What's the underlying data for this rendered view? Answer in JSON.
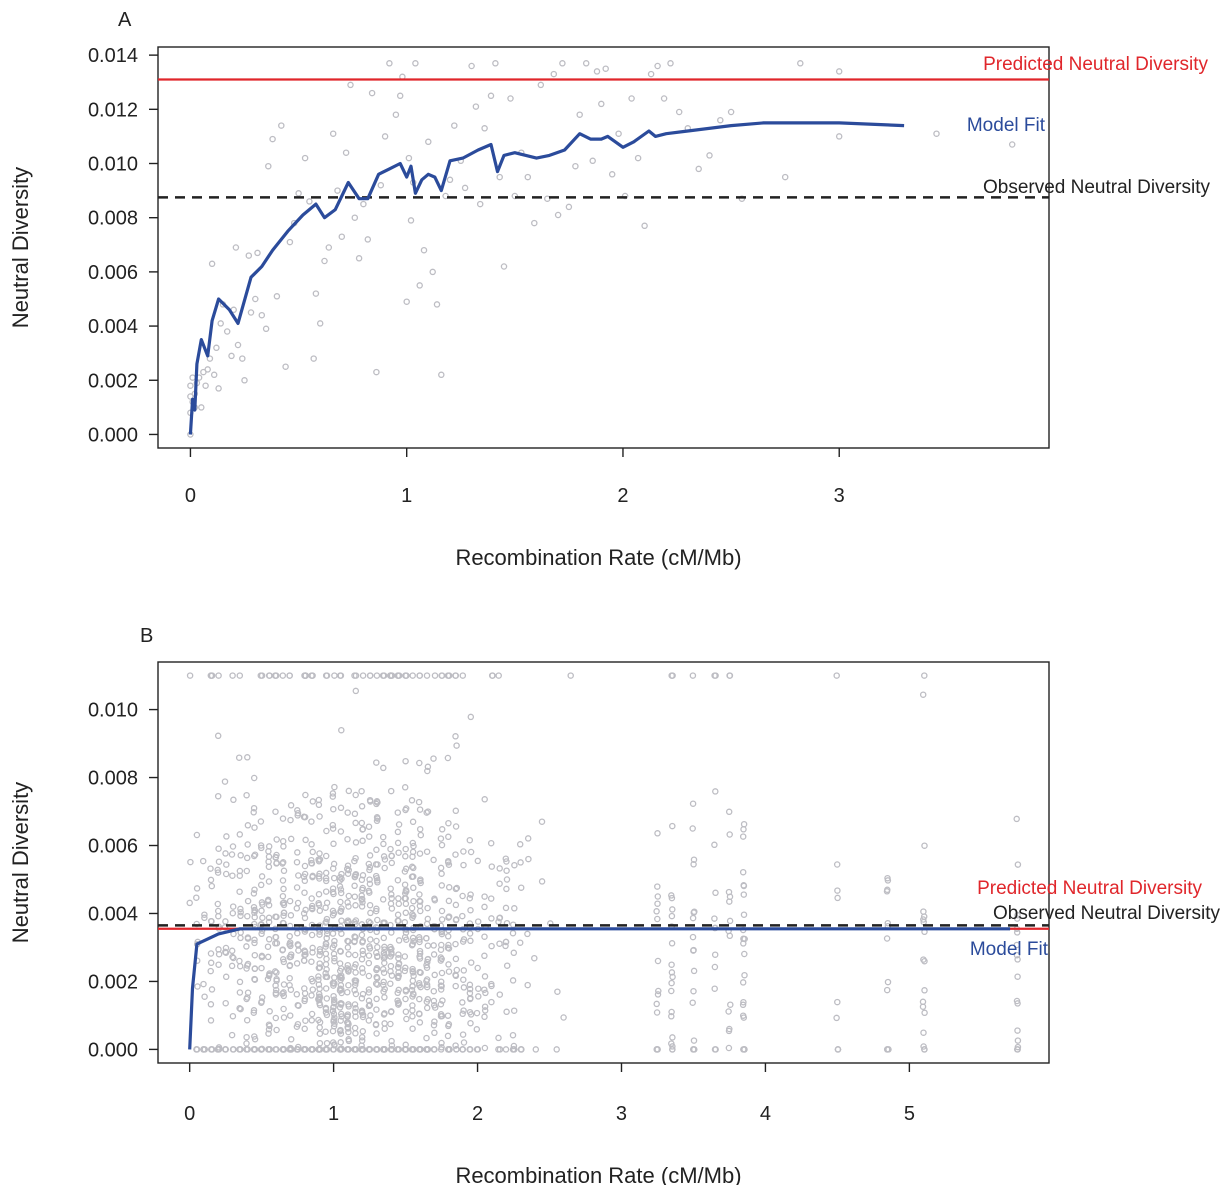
{
  "chart_data": [
    {
      "type": "scatter",
      "panel_label": "A",
      "xlabel": "Recombination Rate (cM/Mb)",
      "ylabel": "Neutral Diversity",
      "xlim": [
        -0.15,
        3.97
      ],
      "ylim": [
        -0.0005,
        0.0143
      ],
      "xticks": [
        "0",
        "1",
        "2",
        "3"
      ],
      "xtick_values": [
        0,
        1,
        2,
        3
      ],
      "yticks": [
        "0.000",
        "0.002",
        "0.004",
        "0.006",
        "0.008",
        "0.010",
        "0.012",
        "0.014"
      ],
      "ytick_values": [
        0,
        0.002,
        0.004,
        0.006,
        0.008,
        0.01,
        0.012,
        0.014
      ],
      "colors": {
        "points": "#bdbdc3",
        "predicted": "#e0262b",
        "model": "#2b4b9b",
        "observed": "#222222"
      },
      "points": [
        [
          0.0,
          0.0
        ],
        [
          0.0,
          0.0008
        ],
        [
          0.0,
          0.0014
        ],
        [
          0.0,
          0.0018
        ],
        [
          0.01,
          0.0012
        ],
        [
          0.01,
          0.0021
        ],
        [
          0.02,
          0.0015
        ],
        [
          0.02,
          0.001
        ],
        [
          0.03,
          0.0019
        ],
        [
          0.04,
          0.0021
        ],
        [
          0.05,
          0.001
        ],
        [
          0.06,
          0.0023
        ],
        [
          0.07,
          0.0018
        ],
        [
          0.08,
          0.0024
        ],
        [
          0.09,
          0.0028
        ],
        [
          0.1,
          0.0063
        ],
        [
          0.11,
          0.0022
        ],
        [
          0.12,
          0.0032
        ],
        [
          0.13,
          0.0017
        ],
        [
          0.14,
          0.0041
        ],
        [
          0.15,
          0.0048
        ],
        [
          0.17,
          0.0038
        ],
        [
          0.19,
          0.0029
        ],
        [
          0.2,
          0.0046
        ],
        [
          0.21,
          0.0069
        ],
        [
          0.22,
          0.0033
        ],
        [
          0.24,
          0.0028
        ],
        [
          0.25,
          0.002
        ],
        [
          0.27,
          0.0066
        ],
        [
          0.28,
          0.0045
        ],
        [
          0.3,
          0.005
        ],
        [
          0.31,
          0.0067
        ],
        [
          0.33,
          0.0044
        ],
        [
          0.35,
          0.0039
        ],
        [
          0.36,
          0.0099
        ],
        [
          0.38,
          0.0109
        ],
        [
          0.4,
          0.0051
        ],
        [
          0.42,
          0.0114
        ],
        [
          0.44,
          0.0025
        ],
        [
          0.46,
          0.0071
        ],
        [
          0.48,
          0.0078
        ],
        [
          0.5,
          0.0089
        ],
        [
          0.53,
          0.0102
        ],
        [
          0.55,
          0.0086
        ],
        [
          0.57,
          0.0028
        ],
        [
          0.58,
          0.0052
        ],
        [
          0.6,
          0.0041
        ],
        [
          0.62,
          0.0064
        ],
        [
          0.64,
          0.0069
        ],
        [
          0.66,
          0.0111
        ],
        [
          0.68,
          0.009
        ],
        [
          0.7,
          0.0073
        ],
        [
          0.72,
          0.0104
        ],
        [
          0.74,
          0.0129
        ],
        [
          0.76,
          0.008
        ],
        [
          0.78,
          0.0065
        ],
        [
          0.8,
          0.0085
        ],
        [
          0.82,
          0.0072
        ],
        [
          0.84,
          0.0126
        ],
        [
          0.86,
          0.0023
        ],
        [
          0.88,
          0.0092
        ],
        [
          0.9,
          0.011
        ],
        [
          0.92,
          0.0137
        ],
        [
          0.95,
          0.0118
        ],
        [
          0.97,
          0.0125
        ],
        [
          0.98,
          0.0132
        ],
        [
          1.0,
          0.0049
        ],
        [
          1.01,
          0.0102
        ],
        [
          1.02,
          0.0079
        ],
        [
          1.03,
          0.0093
        ],
        [
          1.04,
          0.0137
        ],
        [
          1.06,
          0.0055
        ],
        [
          1.08,
          0.0068
        ],
        [
          1.1,
          0.0108
        ],
        [
          1.12,
          0.006
        ],
        [
          1.14,
          0.0048
        ],
        [
          1.16,
          0.0022
        ],
        [
          1.18,
          0.0088
        ],
        [
          1.2,
          0.0094
        ],
        [
          1.22,
          0.0114
        ],
        [
          1.25,
          0.0101
        ],
        [
          1.27,
          0.0091
        ],
        [
          1.3,
          0.0136
        ],
        [
          1.32,
          0.0121
        ],
        [
          1.34,
          0.0085
        ],
        [
          1.36,
          0.0113
        ],
        [
          1.39,
          0.0125
        ],
        [
          1.41,
          0.0137
        ],
        [
          1.43,
          0.0095
        ],
        [
          1.45,
          0.0062
        ],
        [
          1.48,
          0.0124
        ],
        [
          1.5,
          0.0088
        ],
        [
          1.53,
          0.0104
        ],
        [
          1.56,
          0.0095
        ],
        [
          1.59,
          0.0078
        ],
        [
          1.62,
          0.0129
        ],
        [
          1.65,
          0.0087
        ],
        [
          1.68,
          0.0133
        ],
        [
          1.7,
          0.0081
        ],
        [
          1.72,
          0.0137
        ],
        [
          1.75,
          0.0084
        ],
        [
          1.78,
          0.0099
        ],
        [
          1.8,
          0.0118
        ],
        [
          1.83,
          0.0137
        ],
        [
          1.86,
          0.0101
        ],
        [
          1.88,
          0.0134
        ],
        [
          1.9,
          0.0122
        ],
        [
          1.92,
          0.0135
        ],
        [
          1.95,
          0.0096
        ],
        [
          1.98,
          0.0111
        ],
        [
          2.01,
          0.0088
        ],
        [
          2.04,
          0.0124
        ],
        [
          2.07,
          0.0102
        ],
        [
          2.1,
          0.0077
        ],
        [
          2.13,
          0.0133
        ],
        [
          2.16,
          0.0136
        ],
        [
          2.19,
          0.0124
        ],
        [
          2.22,
          0.0137
        ],
        [
          2.26,
          0.0119
        ],
        [
          2.3,
          0.0113
        ],
        [
          2.35,
          0.0098
        ],
        [
          2.4,
          0.0103
        ],
        [
          2.45,
          0.0116
        ],
        [
          2.5,
          0.0119
        ],
        [
          2.55,
          0.0087
        ],
        [
          2.75,
          0.0095
        ],
        [
          2.82,
          0.0137
        ],
        [
          3.0,
          0.0134
        ],
        [
          3.0,
          0.011
        ],
        [
          3.45,
          0.0111
        ],
        [
          3.8,
          0.0107
        ]
      ],
      "model_fit": {
        "name": "Model Fit",
        "x": [
          0.0,
          0.01,
          0.02,
          0.03,
          0.05,
          0.08,
          0.1,
          0.13,
          0.18,
          0.22,
          0.28,
          0.33,
          0.38,
          0.45,
          0.52,
          0.58,
          0.62,
          0.67,
          0.73,
          0.78,
          0.82,
          0.87,
          0.92,
          0.97,
          1.0,
          1.02,
          1.04,
          1.07,
          1.1,
          1.13,
          1.16,
          1.2,
          1.26,
          1.33,
          1.39,
          1.42,
          1.45,
          1.5,
          1.6,
          1.66,
          1.73,
          1.8,
          1.85,
          1.9,
          1.93,
          2.0,
          2.05,
          2.12,
          2.15,
          2.2,
          2.3,
          2.5,
          2.65,
          3.0,
          3.3
        ],
        "y": [
          0.0,
          0.0013,
          0.0009,
          0.0026,
          0.0035,
          0.0029,
          0.0042,
          0.005,
          0.0046,
          0.0041,
          0.0058,
          0.0062,
          0.0068,
          0.0075,
          0.0081,
          0.0085,
          0.008,
          0.0083,
          0.0093,
          0.0087,
          0.0087,
          0.0096,
          0.0098,
          0.01,
          0.0095,
          0.0099,
          0.0089,
          0.0094,
          0.0096,
          0.0095,
          0.009,
          0.0101,
          0.0102,
          0.0105,
          0.0107,
          0.0097,
          0.0103,
          0.0104,
          0.0102,
          0.0103,
          0.0105,
          0.0111,
          0.0109,
          0.0109,
          0.011,
          0.0106,
          0.0108,
          0.0112,
          0.011,
          0.0111,
          0.0112,
          0.0114,
          0.0115,
          0.0115,
          0.0114
        ]
      },
      "predicted_value": 0.0131,
      "observed_value": 0.00875,
      "labels": {
        "predicted": "Predicted Neutral Diversity",
        "model": "Model Fit",
        "observed": "Observed Neutral Diversity"
      }
    },
    {
      "type": "scatter",
      "panel_label": "B",
      "xlabel": "Recombination Rate (cM/Mb)",
      "ylabel": "Neutral Diversity",
      "xlim": [
        -0.22,
        5.97
      ],
      "ylim": [
        -0.0004,
        0.0114
      ],
      "xticks": [
        "0",
        "1",
        "2",
        "3",
        "4",
        "5"
      ],
      "xtick_values": [
        0,
        1,
        2,
        3,
        4,
        5
      ],
      "yticks": [
        "0.000",
        "0.002",
        "0.004",
        "0.006",
        "0.008",
        "0.010"
      ],
      "ytick_values": [
        0,
        0.002,
        0.004,
        0.006,
        0.008,
        0.01
      ],
      "colors": {
        "points": "#bdbdc3",
        "predicted": "#e0262b",
        "model": "#2b4b9b",
        "observed": "#222222"
      },
      "points_generated": {
        "count": 1500,
        "x_mean": 1.15,
        "y_max": 0.011,
        "sparse_columns": [
          3.25,
          3.35,
          3.5,
          3.65,
          3.75,
          3.85,
          4.5,
          4.85,
          5.1,
          5.75
        ]
      },
      "model_fit": {
        "name": "Model Fit",
        "x": [
          0.0,
          0.02,
          0.05,
          0.1,
          0.2,
          0.35,
          0.6,
          1.0,
          2.0,
          3.0,
          4.0,
          5.0,
          5.7
        ],
        "y": [
          0.0,
          0.0018,
          0.0031,
          0.0032,
          0.0034,
          0.00355,
          0.00355,
          0.00355,
          0.00355,
          0.00355,
          0.00355,
          0.00355,
          0.00355
        ]
      },
      "predicted_value": 0.00355,
      "observed_value": 0.00365,
      "labels": {
        "predicted": "Predicted Neutral Diversity",
        "model": "Model Fit",
        "observed": "Observed Neutral Diversity"
      }
    }
  ]
}
